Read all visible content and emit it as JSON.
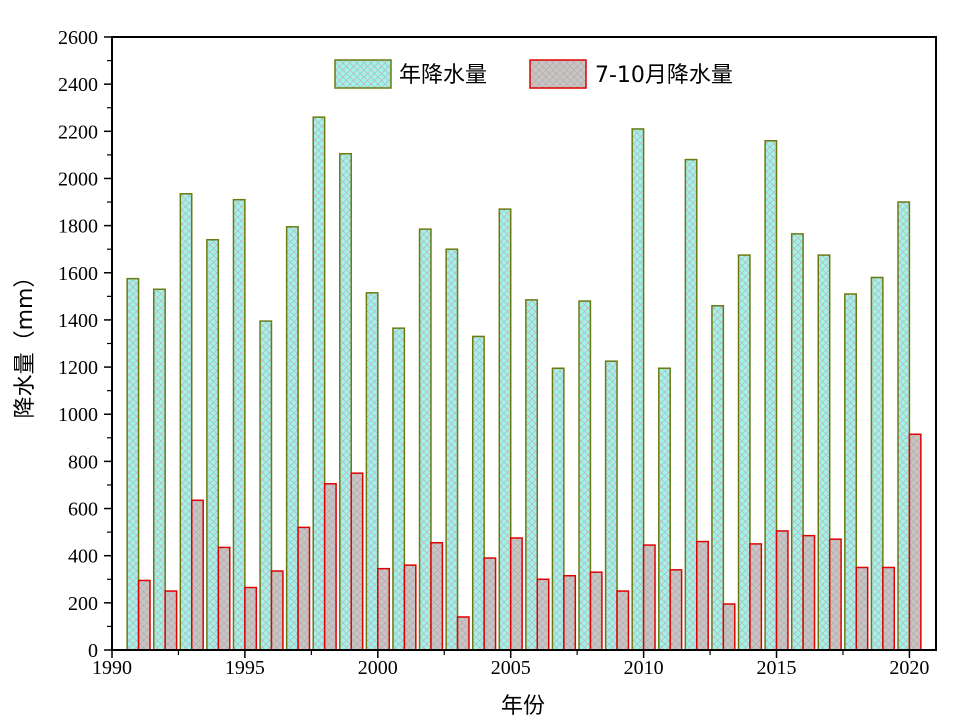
{
  "chart_data": {
    "type": "bar",
    "title": "",
    "xlabel": "年份",
    "ylabel": "降水量（mm）",
    "xlim": [
      1990,
      2021
    ],
    "ylim": [
      0,
      2600
    ],
    "x_ticks": [
      1990,
      1995,
      2000,
      2005,
      2010,
      2015,
      2020
    ],
    "y_ticks": [
      0,
      200,
      400,
      600,
      800,
      1000,
      1200,
      1400,
      1600,
      1800,
      2000,
      2200,
      2400,
      2600
    ],
    "grid": false,
    "legend_position": "top-center",
    "x": [
      1991,
      1992,
      1993,
      1994,
      1995,
      1996,
      1997,
      1998,
      1999,
      2000,
      2001,
      2002,
      2003,
      2004,
      2005,
      2006,
      2007,
      2008,
      2009,
      2010,
      2011,
      2012,
      2013,
      2014,
      2015,
      2016,
      2017,
      2018,
      2019,
      2020
    ],
    "series": [
      {
        "name": "年降水量",
        "fill_color": "#9ff2ee",
        "stroke_color": "#6b7a10",
        "values": [
          1575,
          1530,
          1935,
          1740,
          1910,
          1395,
          1795,
          2260,
          2105,
          1515,
          1365,
          1785,
          1700,
          1330,
          1870,
          1485,
          1195,
          1480,
          1225,
          2210,
          1195,
          2080,
          1460,
          1675,
          2160,
          1765,
          1675,
          1510,
          1580,
          1900
        ]
      },
      {
        "name": "7-10月降水量",
        "fill_color": "#c8c4c4",
        "stroke_color": "#e00000",
        "values": [
          295,
          250,
          635,
          435,
          265,
          335,
          520,
          705,
          750,
          345,
          360,
          455,
          140,
          390,
          475,
          300,
          315,
          330,
          250,
          445,
          340,
          460,
          195,
          450,
          505,
          485,
          470,
          350,
          350,
          915
        ]
      }
    ]
  }
}
